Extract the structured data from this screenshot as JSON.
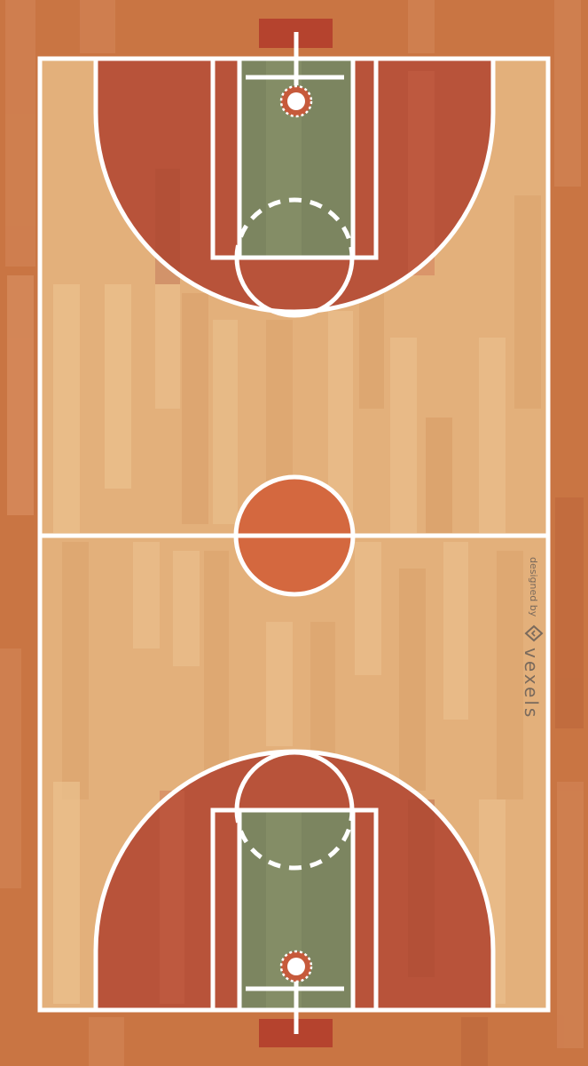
{
  "watermark": {
    "prefix": "designed by",
    "brand": "vexels",
    "logo_icon": "vexels-diamond-logo"
  },
  "colors": {
    "outer_floor": "#c97543",
    "outer_floor_dark": "#bd6a3c",
    "court_floor": "#e3b07b",
    "court_floor_light": "#ebc28f",
    "court_floor_dark": "#d9a06a",
    "three_point_area": "#b8533a",
    "paint": "#7c8560",
    "paint_light": "#87906a",
    "center_circle_fill": "#d4683f",
    "backboard": "#b5432e",
    "rim": "#c65a3b",
    "lines": "#ffffff",
    "watermark": "#7a6a5c"
  }
}
